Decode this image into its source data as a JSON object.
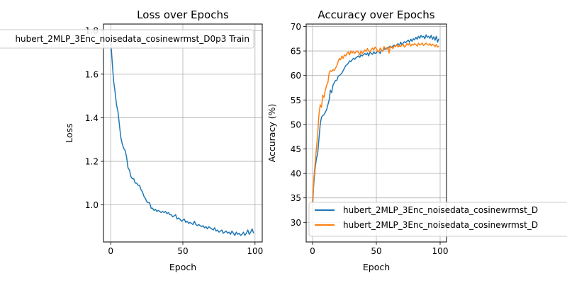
{
  "chart_data": [
    {
      "type": "line",
      "title": "Loss over Epochs",
      "xlabel": "Epoch",
      "ylabel": "Loss",
      "xlim": [
        -5,
        105
      ],
      "ylim": [
        0.83,
        1.83
      ],
      "xticks": [
        0,
        50,
        100
      ],
      "yticks": [
        1.0,
        1.2,
        1.4,
        1.6,
        1.8
      ],
      "grid": true,
      "legend": "top",
      "series": [
        {
          "name": "hubert_2MLP_3Enc_noisedata_cosinewrmst_D0p3 Train",
          "color": "#1f77b4",
          "x": [
            0,
            1,
            2,
            3,
            4,
            5,
            6,
            7,
            8,
            9,
            10,
            11,
            12,
            13,
            14,
            15,
            16,
            17,
            18,
            19,
            20,
            21,
            22,
            23,
            24,
            25,
            26,
            27,
            28,
            29,
            30,
            31,
            32,
            33,
            34,
            35,
            36,
            37,
            38,
            39,
            40,
            41,
            42,
            43,
            44,
            45,
            46,
            47,
            48,
            49,
            50,
            51,
            52,
            53,
            54,
            55,
            56,
            57,
            58,
            59,
            60,
            61,
            62,
            63,
            64,
            65,
            66,
            67,
            68,
            69,
            70,
            71,
            72,
            73,
            74,
            75,
            76,
            77,
            78,
            79,
            80,
            81,
            82,
            83,
            84,
            85,
            86,
            87,
            88,
            89,
            90,
            91,
            92,
            93,
            94,
            95,
            96,
            97,
            98,
            99
          ],
          "values": [
            1.76,
            1.66,
            1.57,
            1.52,
            1.46,
            1.43,
            1.37,
            1.31,
            1.28,
            1.26,
            1.25,
            1.22,
            1.17,
            1.16,
            1.13,
            1.12,
            1.12,
            1.1,
            1.1,
            1.09,
            1.09,
            1.07,
            1.06,
            1.04,
            1.03,
            1.015,
            1.01,
            1.01,
            0.985,
            0.985,
            0.975,
            0.98,
            0.97,
            0.975,
            0.97,
            0.965,
            0.97,
            0.965,
            0.97,
            0.96,
            0.965,
            0.955,
            0.955,
            0.945,
            0.95,
            0.955,
            0.935,
            0.94,
            0.935,
            0.925,
            0.93,
            0.935,
            0.92,
            0.925,
            0.915,
            0.92,
            0.915,
            0.91,
            0.925,
            0.91,
            0.905,
            0.91,
            0.905,
            0.9,
            0.905,
            0.895,
            0.9,
            0.89,
            0.9,
            0.895,
            0.89,
            0.885,
            0.895,
            0.88,
            0.885,
            0.875,
            0.88,
            0.885,
            0.87,
            0.875,
            0.88,
            0.87,
            0.875,
            0.865,
            0.88,
            0.87,
            0.86,
            0.875,
            0.865,
            0.87,
            0.86,
            0.865,
            0.875,
            0.86,
            0.87,
            0.885,
            0.865,
            0.875,
            0.89,
            0.87
          ]
        }
      ]
    },
    {
      "type": "line",
      "title": "Accuracy over Epochs",
      "xlabel": "Epoch",
      "ylabel": "Accuracy (%)",
      "xlim": [
        -5,
        105
      ],
      "ylim": [
        26,
        70.5
      ],
      "xticks": [
        0,
        50,
        100
      ],
      "yticks": [
        30,
        35,
        40,
        45,
        50,
        55,
        60,
        65,
        70
      ],
      "grid": true,
      "legend": "lower right",
      "series": [
        {
          "name": "hubert_2MLP_3Enc_noisedata_cosinewrmst_D",
          "color": "#1f77b4",
          "x": [
            0,
            1,
            2,
            3,
            4,
            5,
            6,
            7,
            8,
            9,
            10,
            11,
            12,
            13,
            14,
            15,
            16,
            17,
            18,
            19,
            20,
            21,
            22,
            23,
            24,
            25,
            26,
            27,
            28,
            29,
            30,
            31,
            32,
            33,
            34,
            35,
            36,
            37,
            38,
            39,
            40,
            41,
            42,
            43,
            44,
            45,
            46,
            47,
            48,
            49,
            50,
            51,
            52,
            53,
            54,
            55,
            56,
            57,
            58,
            59,
            60,
            61,
            62,
            63,
            64,
            65,
            66,
            67,
            68,
            69,
            70,
            71,
            72,
            73,
            74,
            75,
            76,
            77,
            78,
            79,
            80,
            81,
            82,
            83,
            84,
            85,
            86,
            87,
            88,
            89,
            90,
            91,
            92,
            93,
            94,
            95,
            96,
            97,
            98,
            99
          ],
          "values": [
            34,
            38,
            41,
            43,
            44,
            47,
            50,
            51.5,
            51.8,
            52,
            52.5,
            53,
            54,
            55,
            57,
            56.5,
            58,
            58.5,
            59,
            59,
            59.8,
            60,
            60.2,
            60.5,
            61,
            61.5,
            62,
            62.2,
            62.5,
            63,
            62.8,
            63.2,
            63.5,
            63.3,
            63.6,
            63.8,
            64,
            63.7,
            64.2,
            64,
            64.3,
            64.5,
            64.2,
            64.6,
            64,
            64.8,
            64.5,
            64.3,
            64.8,
            64.5,
            64.6,
            65,
            64.8,
            64.5,
            65.2,
            65,
            65.5,
            65.3,
            65.6,
            65.4,
            65.8,
            66,
            65.7,
            66,
            66.2,
            65.9,
            66.3,
            66.5,
            66,
            66.8,
            66.3,
            66.6,
            66.9,
            66.7,
            67,
            67.2,
            66.8,
            67.4,
            67,
            67.5,
            67.3,
            67.8,
            67.4,
            68,
            67.6,
            68.2,
            67.8,
            68,
            67.5,
            68.3,
            67.8,
            68,
            67.6,
            68.2,
            67.4,
            67.9,
            67.2,
            68,
            66.8,
            67.5
          ]
        },
        {
          "name": "hubert_2MLP_3Enc_noisedata_cosinewrmst_D",
          "color": "#ff7f0e",
          "x": [
            0,
            1,
            2,
            3,
            4,
            5,
            6,
            7,
            8,
            9,
            10,
            11,
            12,
            13,
            14,
            15,
            16,
            17,
            18,
            19,
            20,
            21,
            22,
            23,
            24,
            25,
            26,
            27,
            28,
            29,
            30,
            31,
            32,
            33,
            34,
            35,
            36,
            37,
            38,
            39,
            40,
            41,
            42,
            43,
            44,
            45,
            46,
            47,
            48,
            49,
            50,
            51,
            52,
            53,
            54,
            55,
            56,
            57,
            58,
            59,
            60,
            61,
            62,
            63,
            64,
            65,
            66,
            67,
            68,
            69,
            70,
            71,
            72,
            73,
            74,
            75,
            76,
            77,
            78,
            79,
            80,
            81,
            82,
            83,
            84,
            85,
            86,
            87,
            88,
            89,
            90,
            91,
            92,
            93,
            94,
            95,
            96,
            97,
            98,
            99
          ],
          "values": [
            32,
            39,
            42,
            45,
            48,
            52,
            54,
            53.5,
            56,
            55.5,
            57,
            58,
            58.5,
            60.5,
            61,
            60.8,
            61.2,
            61,
            61.5,
            62,
            62.8,
            63.5,
            63.2,
            64,
            63.5,
            64.2,
            64,
            64.5,
            64.8,
            64.2,
            65,
            64.6,
            64.9,
            64.5,
            64.8,
            65,
            64.7,
            64.2,
            65,
            64.5,
            64.8,
            65.2,
            64.9,
            65.5,
            65,
            64.8,
            65.3,
            65.6,
            65.2,
            65.8,
            65.5,
            65,
            64.8,
            65.6,
            65.2,
            64.9,
            65.9,
            65.5,
            65.4,
            65.8,
            64.6,
            66,
            65.8,
            65.5,
            66,
            65.9,
            66.3,
            65.8,
            66.1,
            65.9,
            66.2,
            66.4,
            65.8,
            66,
            66.5,
            66.2,
            66.6,
            66,
            66.4,
            66.2,
            66.5,
            66.3,
            66,
            66.6,
            66.2,
            66.4,
            66.6,
            66.1,
            66.4,
            66.6,
            66.3,
            66.2,
            66.5,
            66.1,
            66.4,
            66.2,
            65.9,
            66.3,
            65.8,
            66
          ]
        }
      ]
    }
  ]
}
